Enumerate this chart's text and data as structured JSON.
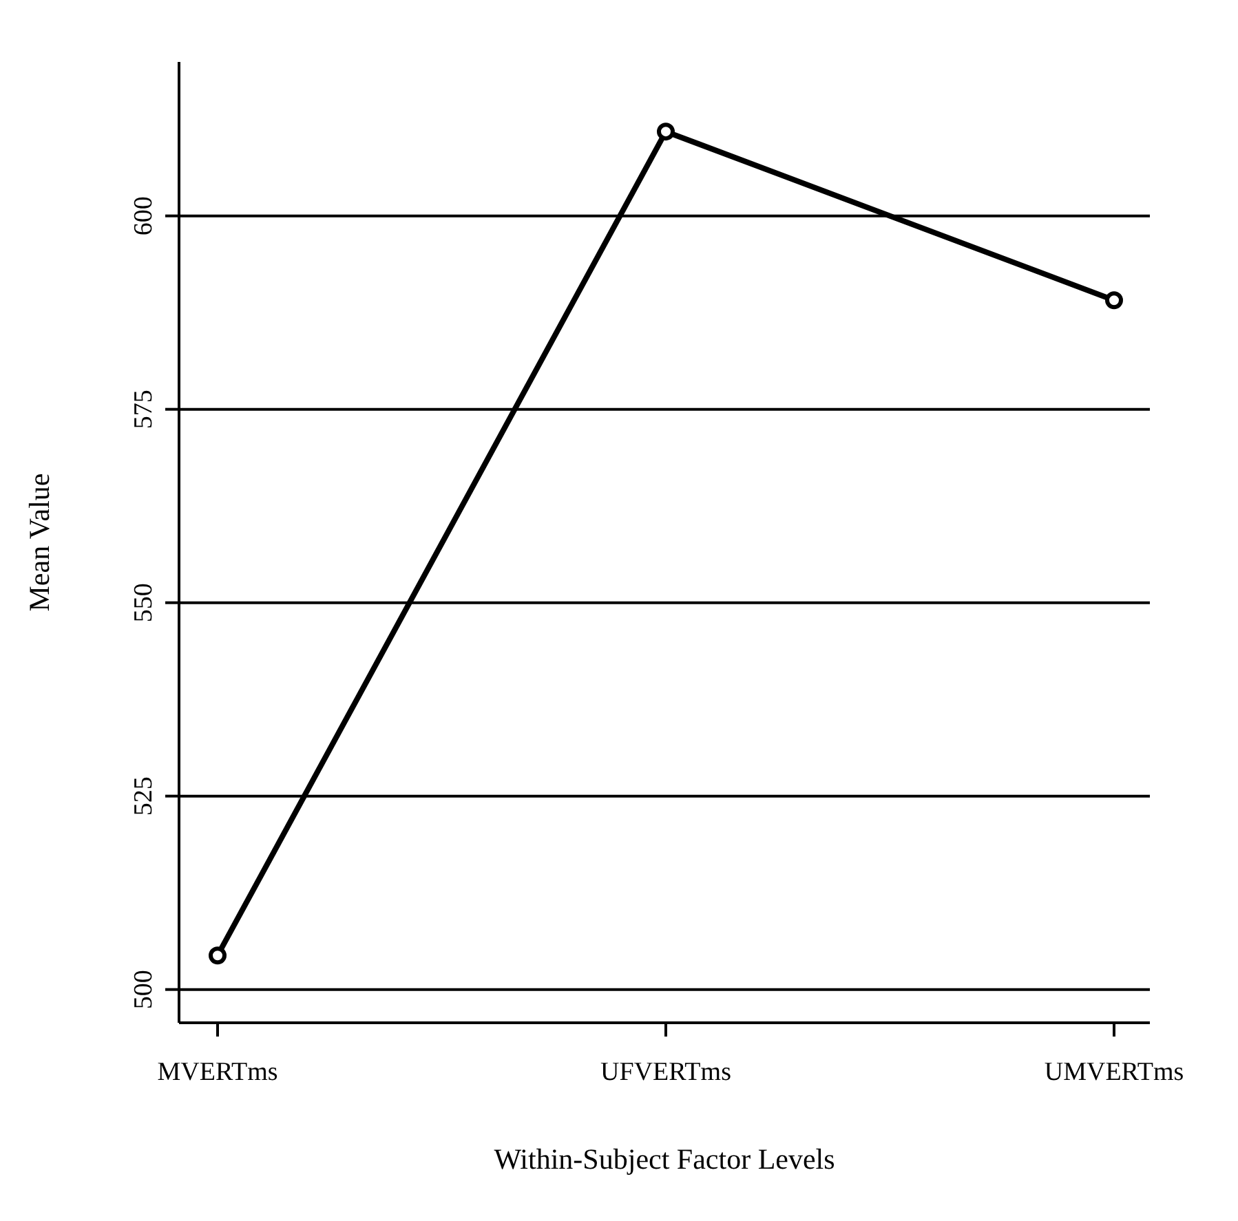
{
  "chart_data": {
    "type": "line",
    "xlabel": "Within-Subject Factor Levels",
    "ylabel": "Mean Value",
    "categories": [
      "MVERTms",
      "UFVERTms",
      "UMVERTms"
    ],
    "series": [
      {
        "color": "#000000",
        "values": [
          504.4,
          610.9,
          589.1
        ]
      }
    ],
    "ylim": [
      495.7,
      619.9
    ],
    "yticks": [
      500,
      525,
      550,
      575,
      600
    ],
    "grid": "y",
    "marker": "circle",
    "line_style": "solid",
    "legend": false
  }
}
